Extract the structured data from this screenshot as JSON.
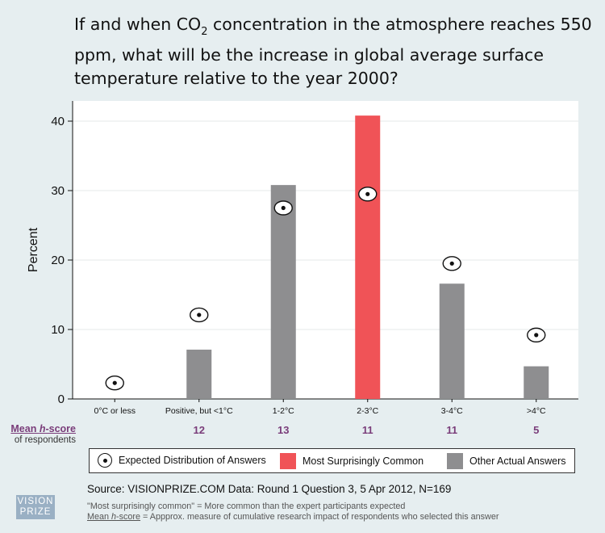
{
  "title_parts": {
    "pre": " If and when CO",
    "subscript": "2",
    "post": " concentration in the atmosphere reaches 550 ppm, what will be the increase in global average surface temperature relative to the year 2000?"
  },
  "chart_data": {
    "type": "bar",
    "categories": [
      "0°C or less",
      "Positive, but <1°C",
      "1-2°C",
      "2-3°C",
      "3-4°C",
      ">4°C"
    ],
    "series": [
      {
        "name": "Actual Answers",
        "values": [
          0,
          7.1,
          30.8,
          40.8,
          16.6,
          4.7
        ]
      },
      {
        "name": "Expected Distribution of Answers",
        "values": [
          2.3,
          12.1,
          27.5,
          29.5,
          19.5,
          9.2
        ]
      }
    ],
    "highlight_category": "2-3°C",
    "ylabel": "Percent",
    "xlabel": "",
    "ylim": [
      0,
      43
    ],
    "yticks": [
      0,
      10,
      20,
      30,
      40
    ],
    "grid": true,
    "mean_h_scores": [
      "",
      "12",
      "13",
      "11",
      "11",
      "5"
    ]
  },
  "colors": {
    "most_surprising": "#f05357",
    "other_actual": "#8e8e90",
    "h_score_text": "#7a3d7a",
    "plot_bg": "#ffffff",
    "page_bg": "#e6eef0"
  },
  "legend": {
    "expected": "Expected Distribution of Answers",
    "most_surprising": "Most Surprisingly Common",
    "other": "Other Actual Answers"
  },
  "mean_label": {
    "line1_pre": "Mean ",
    "line1_h": "h",
    "line1_post": "-score",
    "line2": "of respondents"
  },
  "source": "Source: VISIONPRIZE.COM  Data: Round 1 Question 3,  5 Apr 2012, N=169",
  "notes": {
    "line1": "\"Most surprisingly common\" = More common than the expert participants expected",
    "line2_pre": "Mean ",
    "line2_h": "h",
    "line2_u_post": "-score",
    "line2_post": " = Appprox. measure of cumulative research impact of respondents who selected this answer"
  },
  "logo": {
    "line1": "VISION",
    "line2": "PRIZE"
  }
}
